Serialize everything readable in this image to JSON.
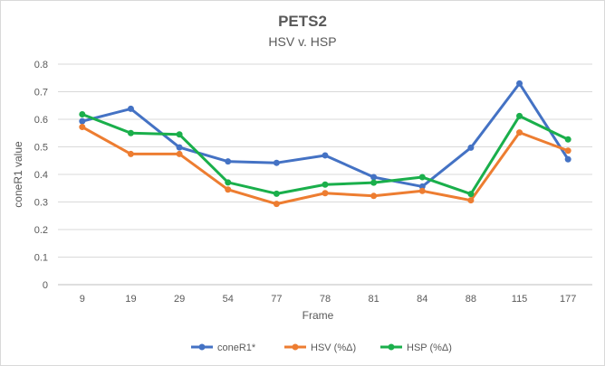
{
  "chart_data": {
    "type": "line",
    "title": "PETS2",
    "subtitle": "HSV v. HSP",
    "xlabel": "Frame",
    "ylabel": "coneR1 value",
    "categories": [
      "9",
      "19",
      "29",
      "54",
      "77",
      "78",
      "81",
      "84",
      "88",
      "115",
      "177"
    ],
    "ylim": [
      0,
      0.8
    ],
    "yticks": [
      "0",
      "0.1",
      "0.2",
      "0.3",
      "0.4",
      "0.5",
      "0.6",
      "0.7",
      "0.8"
    ],
    "grid": true,
    "legend_position": "bottom",
    "series": [
      {
        "name": "coneR1*",
        "color": "#4472c4",
        "values": [
          0.593,
          0.638,
          0.498,
          0.447,
          0.442,
          0.469,
          0.39,
          0.356,
          0.497,
          0.73,
          0.455
        ]
      },
      {
        "name": "HSV (%Δ)",
        "color": "#ed7d31",
        "values": [
          0.572,
          0.474,
          0.474,
          0.345,
          0.293,
          0.332,
          0.322,
          0.34,
          0.306,
          0.552,
          0.486
        ]
      },
      {
        "name": "HSP (%Δ)",
        "color": "#1aaf4b",
        "values": [
          0.618,
          0.55,
          0.545,
          0.371,
          0.33,
          0.363,
          0.37,
          0.39,
          0.329,
          0.612,
          0.527
        ]
      }
    ]
  }
}
